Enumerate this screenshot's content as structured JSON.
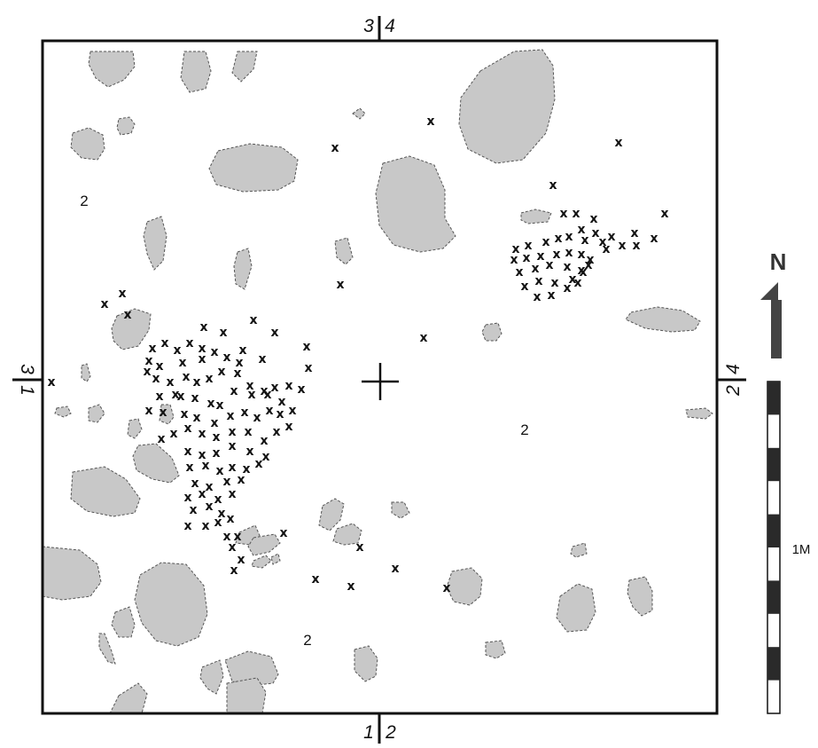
{
  "map": {
    "grid_labels": {
      "top_left": "3",
      "top_right": "4",
      "bottom_left": "1",
      "bottom_right": "2",
      "left_top": "3",
      "left_bottom": "1",
      "right_top": "2",
      "right_bottom": "4"
    },
    "zone_labels": [
      "2",
      "2",
      "2"
    ],
    "marker_symbol": "x",
    "north_label": "N",
    "scale_label": "1M",
    "colors": {
      "stone_fill": "#c8c8c8",
      "stone_outline": "#555555",
      "ink": "#111111",
      "north_arrow": "#444444"
    }
  }
}
